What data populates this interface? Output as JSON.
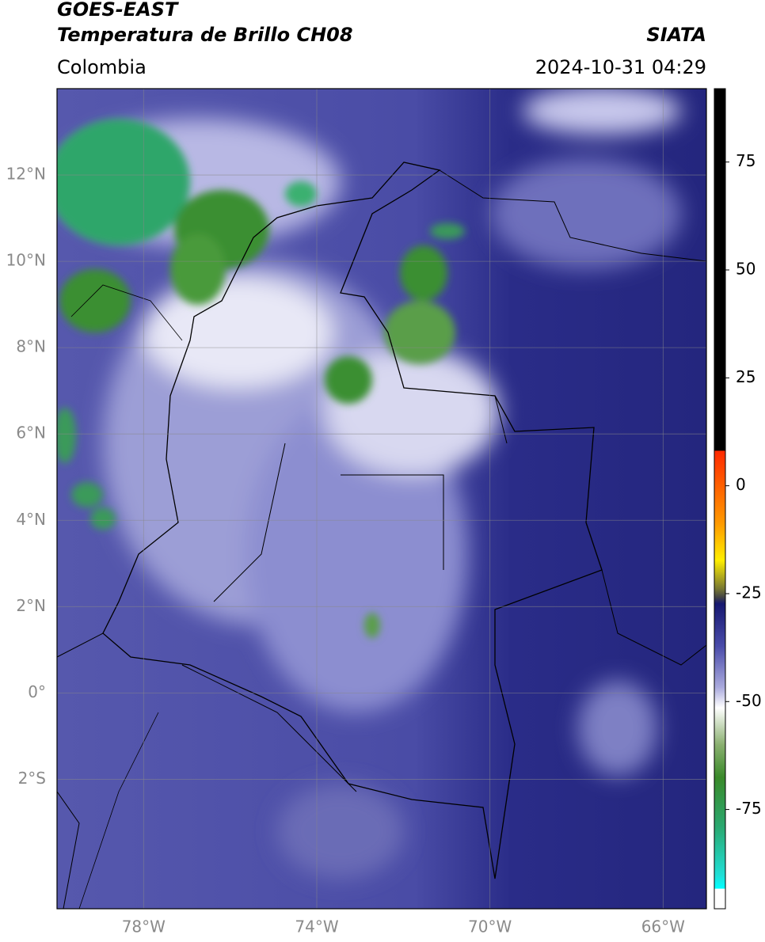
{
  "header": {
    "title": "GOES-EAST",
    "subtitle": "Temperatura de Brillo CH08",
    "source": "SIATA",
    "region": "Colombia",
    "datetime": "2024-10-31 04:29"
  },
  "map": {
    "xlim": [
      -80,
      -65
    ],
    "ylim": [
      -5,
      14
    ],
    "xticks": [
      {
        "value": -78,
        "label": "78°W"
      },
      {
        "value": -74,
        "label": "74°W"
      },
      {
        "value": -70,
        "label": "70°W"
      },
      {
        "value": -66,
        "label": "66°W"
      }
    ],
    "yticks": [
      {
        "value": 12,
        "label": "12°N"
      },
      {
        "value": 10,
        "label": "10°N"
      },
      {
        "value": 8,
        "label": "8°N"
      },
      {
        "value": 6,
        "label": "6°N"
      },
      {
        "value": 4,
        "label": "4°N"
      },
      {
        "value": 2,
        "label": "2°N"
      },
      {
        "value": 0,
        "label": "0°"
      },
      {
        "value": -2,
        "label": "2°S"
      }
    ],
    "grid": true
  },
  "colorbar": {
    "lim": [
      -98,
      92
    ],
    "ticks": [
      75,
      50,
      25,
      0,
      -25,
      -50,
      -75
    ]
  }
}
